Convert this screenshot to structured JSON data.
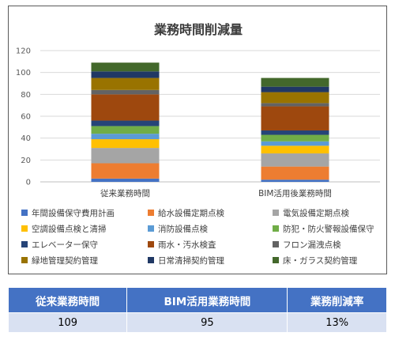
{
  "chart_data": {
    "type": "bar",
    "stacked": true,
    "title": "業務時間削減量",
    "xlabel": "",
    "ylabel": "",
    "ylim": [
      0,
      120
    ],
    "yticks": [
      0,
      20,
      40,
      60,
      80,
      100,
      120
    ],
    "grid": true,
    "legend_position": "bottom",
    "categories": [
      "従来業務時間",
      "BIM活用後業務時間"
    ],
    "series": [
      {
        "name": "年間設備保守費用計画",
        "color": "#4472c4",
        "values": [
          3,
          2
        ]
      },
      {
        "name": "給水設備定期点検",
        "color": "#ed7d31",
        "values": [
          14,
          12
        ]
      },
      {
        "name": "電気設備定期点検",
        "color": "#a5a5a5",
        "values": [
          14,
          12
        ]
      },
      {
        "name": "空調設備点検と清掃",
        "color": "#ffc000",
        "values": [
          8,
          7
        ]
      },
      {
        "name": "消防設備点検",
        "color": "#5b9bd5",
        "values": [
          5,
          4
        ]
      },
      {
        "name": "防犯・防火警報設備保守",
        "color": "#70ad47",
        "values": [
          7,
          6
        ]
      },
      {
        "name": "エレベーター保守",
        "color": "#264478",
        "values": [
          5,
          4
        ]
      },
      {
        "name": "雨水・汚水検査",
        "color": "#9e480e",
        "values": [
          24,
          22
        ]
      },
      {
        "name": "フロン漏洩点検",
        "color": "#636363",
        "values": [
          4,
          3
        ]
      },
      {
        "name": "緑地管理契約管理",
        "color": "#997300",
        "values": [
          11,
          10
        ]
      },
      {
        "name": "日常清掃契約管理",
        "color": "#203864",
        "values": [
          6,
          5
        ]
      },
      {
        "name": "床・ガラス契約管理",
        "color": "#43682b",
        "values": [
          8,
          8
        ]
      }
    ]
  },
  "summary_table": {
    "headers": [
      "従来業務時間",
      "BIM活用業務時間",
      "業務削減率"
    ],
    "values": [
      "109",
      "95",
      "13%"
    ]
  }
}
